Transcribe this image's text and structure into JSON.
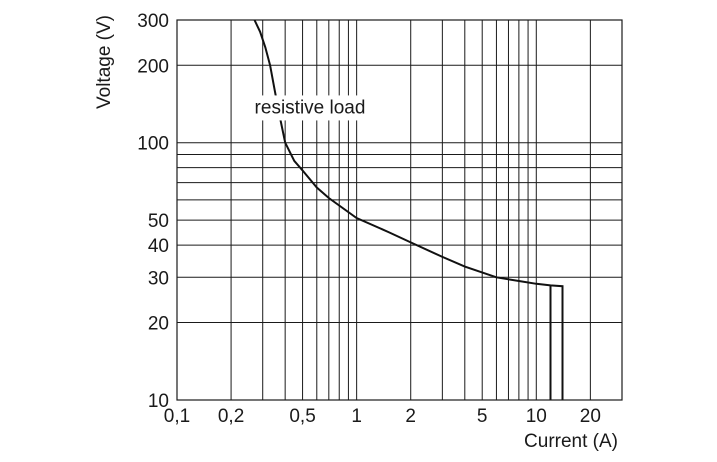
{
  "chart_data": {
    "type": "line",
    "title": "",
    "xlabel": "Current (A)",
    "ylabel": "Voltage (V)",
    "x_scale": "log",
    "y_scale": "log",
    "xlim": [
      0.1,
      30
    ],
    "ylim": [
      10,
      300
    ],
    "grid": true,
    "x_gridlines": [
      0.1,
      0.2,
      0.3,
      0.4,
      0.5,
      0.6,
      0.7,
      0.8,
      0.9,
      1,
      2,
      3,
      4,
      5,
      6,
      7,
      8,
      9,
      10,
      20,
      30
    ],
    "y_gridlines": [
      10,
      20,
      30,
      40,
      50,
      60,
      70,
      80,
      90,
      100,
      200,
      300
    ],
    "x_ticks": [
      {
        "value": 0.1,
        "label": "0,1"
      },
      {
        "value": 0.2,
        "label": "0,2"
      },
      {
        "value": 0.5,
        "label": "0,5"
      },
      {
        "value": 1,
        "label": "1"
      },
      {
        "value": 2,
        "label": "2"
      },
      {
        "value": 5,
        "label": "5"
      },
      {
        "value": 10,
        "label": "10"
      },
      {
        "value": 20,
        "label": "20"
      }
    ],
    "y_ticks": [
      {
        "value": 10,
        "label": "10"
      },
      {
        "value": 20,
        "label": "20"
      },
      {
        "value": 30,
        "label": "30"
      },
      {
        "value": 40,
        "label": "40"
      },
      {
        "value": 50,
        "label": "50"
      },
      {
        "value": 100,
        "label": "100"
      },
      {
        "value": 200,
        "label": "200"
      },
      {
        "value": 300,
        "label": "300"
      }
    ],
    "annotations": [
      {
        "text": "resistive load",
        "x": 0.55,
        "y": 130
      }
    ],
    "series": [
      {
        "x": [
          0.27,
          0.29,
          0.31,
          0.33,
          0.35,
          0.37,
          0.4,
          0.45,
          0.5,
          0.6,
          0.7,
          0.8,
          1,
          1.5,
          2,
          3,
          4,
          6,
          8,
          10,
          12,
          14,
          14,
          14
        ],
        "y": [
          300,
          270,
          235,
          200,
          160,
          130,
          100,
          85,
          78,
          67,
          61,
          57,
          51,
          45,
          41,
          36,
          33,
          30,
          29,
          28.3,
          27.9,
          27.7,
          20,
          10
        ]
      },
      {
        "x": [
          12,
          12
        ],
        "y": [
          27.9,
          10
        ]
      }
    ]
  }
}
